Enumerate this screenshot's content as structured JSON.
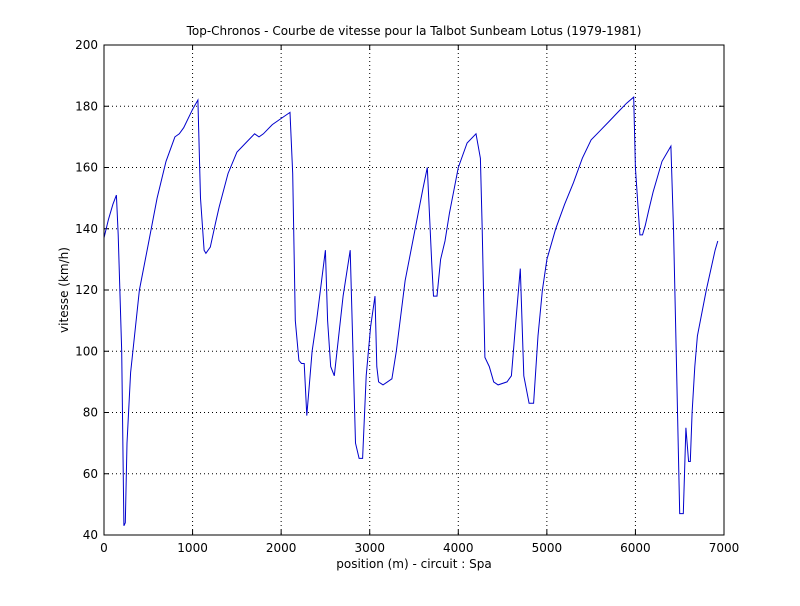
{
  "chart_data": {
    "type": "line",
    "title": "Top-Chronos - Courbe de vitesse pour la Talbot Sunbeam Lotus (1979-1981)",
    "xlabel": "position (m) - circuit : Spa",
    "ylabel": "vitesse (km/h)",
    "xlim": [
      0,
      7000
    ],
    "ylim": [
      40,
      200
    ],
    "xticks": [
      0,
      1000,
      2000,
      3000,
      4000,
      5000,
      6000,
      7000
    ],
    "yticks": [
      40,
      60,
      80,
      100,
      120,
      140,
      160,
      180,
      200
    ],
    "grid": true,
    "line_color": "#0000cc",
    "series": [
      {
        "x": [
          0,
          50,
          100,
          140,
          160,
          200,
          225,
          240,
          260,
          300,
          400,
          500,
          600,
          700,
          800,
          850,
          900,
          1000,
          1060,
          1090,
          1130,
          1150,
          1200,
          1260,
          1300,
          1400,
          1500,
          1600,
          1700,
          1750,
          1800,
          1900,
          2000,
          2100,
          2130,
          2160,
          2200,
          2230,
          2260,
          2290,
          2350,
          2400,
          2500,
          2525,
          2560,
          2600,
          2700,
          2780,
          2840,
          2880,
          2920,
          2960,
          3010,
          3060,
          3080,
          3100,
          3150,
          3200,
          3250,
          3300,
          3400,
          3500,
          3600,
          3650,
          3700,
          3720,
          3760,
          3800,
          3850,
          3900,
          4000,
          4100,
          4200,
          4250,
          4270,
          4300,
          4350,
          4400,
          4450,
          4550,
          4600,
          4650,
          4700,
          4740,
          4800,
          4850,
          4900,
          4950,
          5000,
          5100,
          5200,
          5300,
          5400,
          5500,
          5600,
          5700,
          5800,
          5900,
          5980,
          6000,
          6050,
          6080,
          6110,
          6150,
          6200,
          6300,
          6400,
          6430,
          6460,
          6500,
          6540,
          6570,
          6600,
          6620,
          6640,
          6670,
          6700,
          6800,
          6900,
          6930
        ],
        "y": [
          137,
          143,
          148,
          151,
          138,
          100,
          43,
          44,
          70,
          93,
          120,
          135,
          150,
          162,
          170,
          171,
          173,
          179,
          182,
          150,
          133,
          132,
          134,
          142,
          147,
          158,
          165,
          168,
          171,
          170,
          171,
          174,
          176,
          178,
          158,
          110,
          97,
          96,
          96,
          79,
          100,
          110,
          133,
          110,
          95,
          92,
          118,
          133,
          70,
          65,
          65,
          92,
          108,
          118,
          95,
          90,
          89,
          90,
          91,
          100,
          123,
          138,
          153,
          160,
          129,
          118,
          118,
          130,
          136,
          145,
          160,
          168,
          171,
          163,
          140,
          98,
          95,
          90,
          89,
          90,
          92,
          110,
          127,
          92,
          83,
          83,
          105,
          120,
          130,
          140,
          148,
          155,
          163,
          169,
          172,
          175,
          178,
          181,
          183,
          160,
          138,
          138,
          141,
          146,
          152,
          162,
          167,
          140,
          100,
          47,
          47,
          75,
          64,
          64,
          80,
          95,
          105,
          120,
          133,
          136
        ]
      }
    ]
  }
}
